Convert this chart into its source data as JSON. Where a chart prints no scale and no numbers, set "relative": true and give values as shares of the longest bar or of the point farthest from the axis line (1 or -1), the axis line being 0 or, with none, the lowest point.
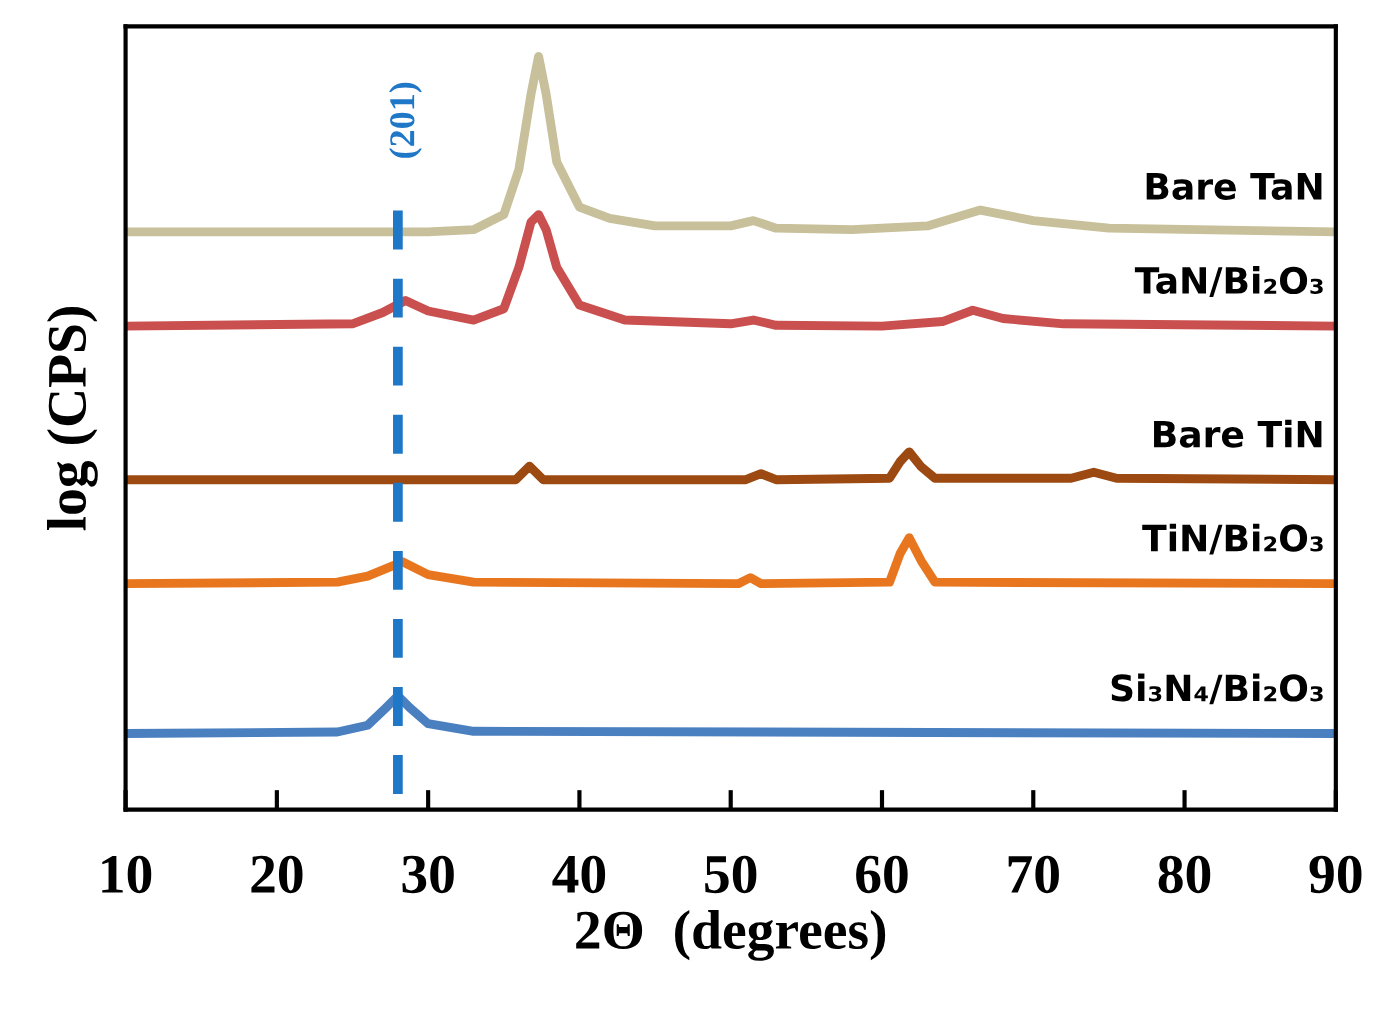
{
  "chart_data": {
    "type": "line",
    "relative": true,
    "xlabel": "2Θ  (degrees)",
    "ylabel": "log (CPS)",
    "xlim": [
      10,
      90
    ],
    "xticks": [
      10,
      20,
      30,
      40,
      50,
      60,
      70,
      80,
      90
    ],
    "tick_labels": "x",
    "grid": false,
    "legend": false,
    "marker": "none",
    "line_style": "solid",
    "ref_lines": [
      {
        "axis": "x",
        "value": 28,
        "color": "#1f77c8",
        "line_style": "dashed"
      }
    ],
    "annotations": [
      "(201)"
    ],
    "series": [
      {
        "name": "Bare TaN",
        "color": "#c8c09a",
        "x": [
          10,
          30,
          33,
          35,
          36,
          36.8,
          37.3,
          37.8,
          38.5,
          40,
          42,
          45,
          50,
          51.5,
          53,
          58,
          63,
          66.5,
          70,
          75,
          90
        ],
        "values": [
          0.767,
          0.767,
          0.77,
          0.79,
          0.85,
          0.95,
          1.0,
          0.95,
          0.86,
          0.8,
          0.785,
          0.775,
          0.775,
          0.782,
          0.772,
          0.77,
          0.775,
          0.796,
          0.782,
          0.772,
          0.767
        ]
      },
      {
        "name": "TaN/Bi₂O₃",
        "color": "#c9504f",
        "x": [
          10,
          25,
          27,
          28.5,
          30,
          33,
          35,
          36,
          36.8,
          37.3,
          37.8,
          38.5,
          40,
          43,
          50,
          51.5,
          53,
          60,
          64,
          66,
          68,
          72,
          90
        ],
        "values": [
          0.642,
          0.645,
          0.66,
          0.676,
          0.662,
          0.65,
          0.665,
          0.72,
          0.78,
          0.79,
          0.77,
          0.72,
          0.67,
          0.65,
          0.645,
          0.65,
          0.643,
          0.642,
          0.648,
          0.663,
          0.652,
          0.645,
          0.642
        ]
      },
      {
        "name": "Bare TiN",
        "color": "#9c4a12",
        "x": [
          10,
          35.8,
          36.7,
          37.6,
          51,
          52,
          53,
          60.5,
          61.2,
          61.8,
          62.6,
          63.5,
          72.5,
          74,
          75.5,
          90
        ],
        "values": [
          0.438,
          0.438,
          0.456,
          0.438,
          0.438,
          0.446,
          0.438,
          0.44,
          0.462,
          0.475,
          0.455,
          0.44,
          0.44,
          0.448,
          0.44,
          0.438
        ]
      },
      {
        "name": "TiN/Bi₂O₃",
        "color": "#e8761e",
        "x": [
          10,
          24,
          26,
          28.3,
          30,
          33,
          50.5,
          51.3,
          52,
          60.5,
          61.2,
          61.8,
          62.6,
          63.5,
          90
        ],
        "values": [
          0.3,
          0.302,
          0.31,
          0.329,
          0.312,
          0.302,
          0.3,
          0.308,
          0.3,
          0.302,
          0.34,
          0.361,
          0.33,
          0.302,
          0.3
        ]
      },
      {
        "name": "Si₃N₄/Bi₂O₃",
        "color": "#4a7fc0",
        "x": [
          10,
          24,
          26,
          27.2,
          28,
          28.8,
          30,
          33,
          90
        ],
        "values": [
          0.101,
          0.103,
          0.112,
          0.135,
          0.151,
          0.135,
          0.114,
          0.104,
          0.101
        ]
      }
    ]
  }
}
